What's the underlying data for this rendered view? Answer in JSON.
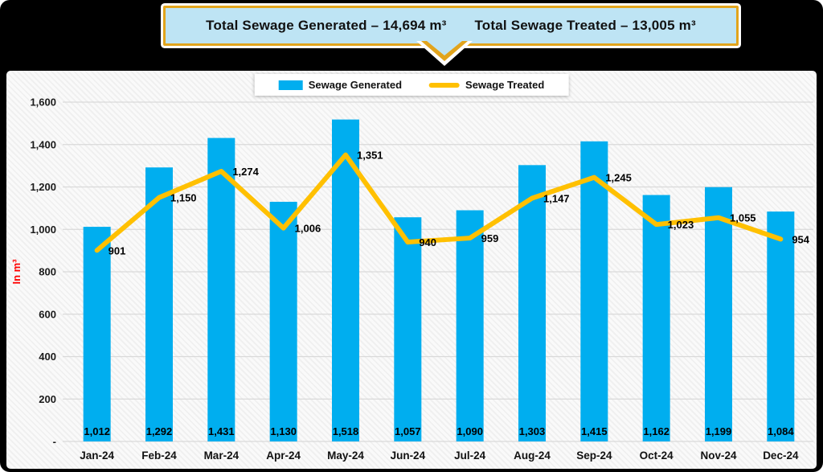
{
  "banner": {
    "generated_text": "Total Sewage Generated – 14,694 m³",
    "treated_text": "Total Sewage Treated – 13,005 m³",
    "background_color": "#BEE4F4",
    "border_color": "#E2A41C"
  },
  "legend": {
    "items": [
      {
        "label": "Sewage Generated",
        "swatch": "bar",
        "color": "#00AEEF"
      },
      {
        "label": "Sewage Treated",
        "swatch": "line",
        "color": "#FFC000"
      }
    ]
  },
  "chart_data": {
    "type": "bar+line",
    "categories": [
      "Jan-24",
      "Feb-24",
      "Mar-24",
      "Apr-24",
      "May-24",
      "Jun-24",
      "Jul-24",
      "Aug-24",
      "Sep-24",
      "Oct-24",
      "Nov-24",
      "Dec-24"
    ],
    "series": [
      {
        "name": "Sewage Generated",
        "type": "bar",
        "color": "#00AEEF",
        "values": [
          1012,
          1292,
          1431,
          1130,
          1518,
          1057,
          1090,
          1303,
          1415,
          1162,
          1199,
          1084
        ]
      },
      {
        "name": "Sewage Treated",
        "type": "line",
        "color": "#FFC000",
        "values": [
          901,
          1150,
          1274,
          1006,
          1351,
          940,
          959,
          1147,
          1245,
          1023,
          1055,
          954
        ]
      }
    ],
    "title": "",
    "xlabel": "",
    "ylabel": "In m³",
    "ylabel_color": "#FF0000",
    "ylim": [
      0,
      1600
    ],
    "ytick_interval": 200,
    "zero_tick_label": "-",
    "grid": true,
    "gridline_color": "#D9D9D9",
    "legend_position": "top-center",
    "value_labels": true,
    "totals": {
      "generated": "14,694",
      "treated": "13,005",
      "unit": "m³"
    }
  }
}
